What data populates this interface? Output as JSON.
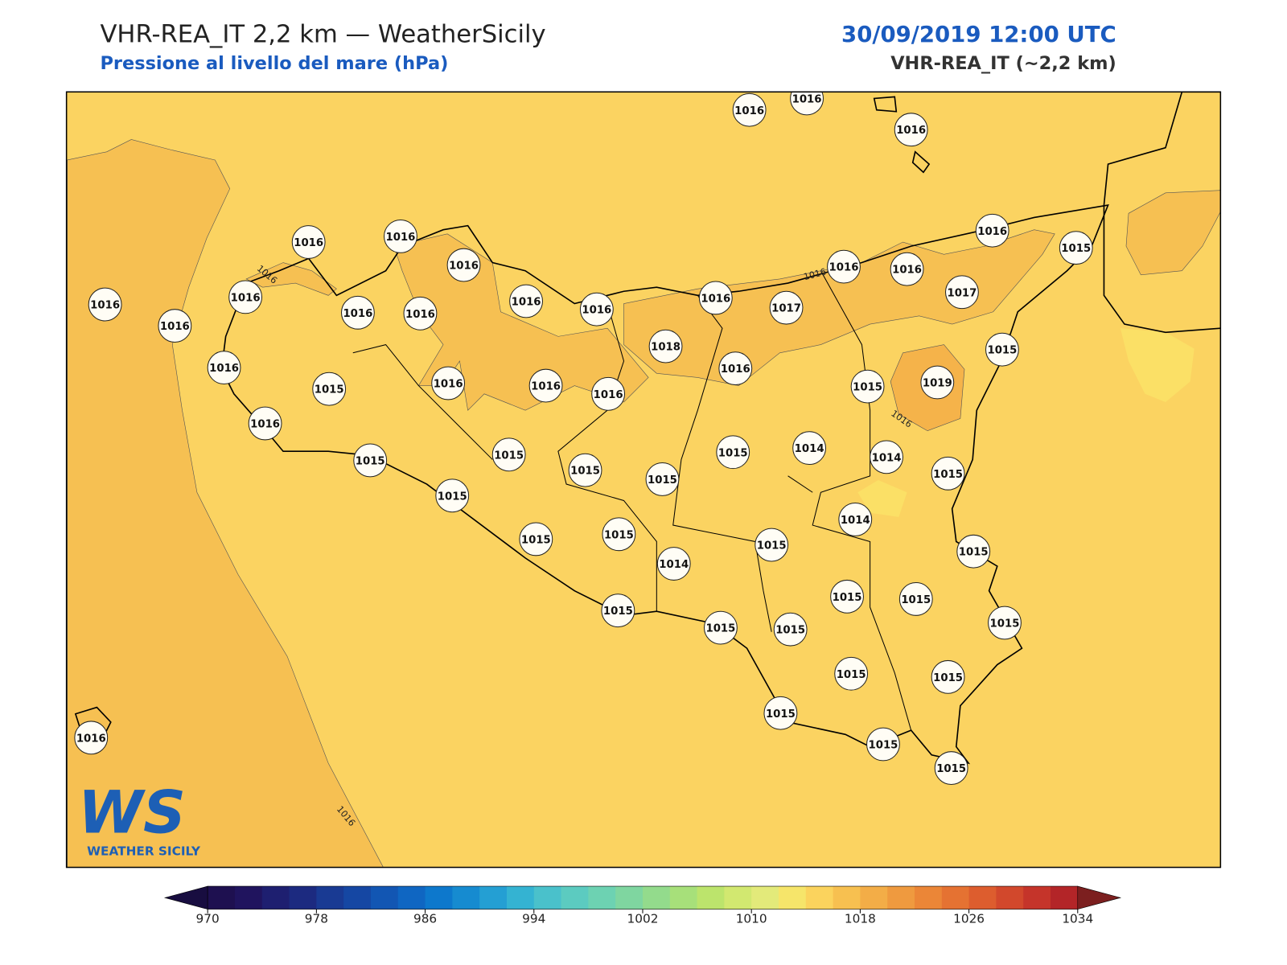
{
  "header": {
    "title": "VHR-REA_IT 2,2 km — WeatherSicily",
    "subtitle": "Pressione al livello del mare (hPa)",
    "date": "30/09/2019 12:00 UTC",
    "model": "VHR-REA_IT (~2,2 km)"
  },
  "map": {
    "stations": [
      1016,
      1016,
      1016,
      1016,
      1016,
      1016,
      1016,
      1016,
      1016,
      1016,
      1016,
      1016,
      1016,
      1016,
      1017,
      1016,
      1016,
      1017,
      1016,
      1015,
      1018,
      1016,
      1015,
      1015,
      1019,
      1016,
      1015,
      1016,
      1016,
      1016,
      1016,
      1015,
      1015,
      1015,
      1015,
      1015,
      1014,
      1014,
      1015,
      1015,
      1014,
      1015,
      1015,
      1015,
      1014,
      1015,
      1015,
      1015,
      1015,
      1015,
      1015,
      1015,
      1015,
      1015,
      1015,
      1015,
      1015,
      1016
    ],
    "contour_labels": [
      "1016",
      "1016",
      "1016",
      "1016"
    ],
    "land_color": "#fbd361",
    "high_color": "#f6c052",
    "low_color": "#fbe066"
  },
  "logo": {
    "mark": "WS",
    "name": "WEATHER SICILY"
  },
  "colorbar": {
    "range": [
      970,
      1034
    ],
    "ticks": [
      970,
      978,
      986,
      994,
      1002,
      1010,
      1018,
      1026,
      1034
    ],
    "under_color": "#180d40",
    "over_color": "#7c1f1f",
    "colors": [
      "#1e1050",
      "#20145e",
      "#1e1f70",
      "#1c2a80",
      "#193a93",
      "#1547a3",
      "#1256b3",
      "#0f66c2",
      "#0d78cc",
      "#168bd0",
      "#249fd3",
      "#34b3d2",
      "#4ac1cb",
      "#5ccbc0",
      "#6dd2b2",
      "#7fd6a0",
      "#93db8c",
      "#a7e07a",
      "#bce46c",
      "#d2e870",
      "#e3ea7a",
      "#f6e56a",
      "#fbd35d",
      "#f7c050",
      "#f3ad47",
      "#ef9a3f",
      "#eb8637",
      "#e57232",
      "#dd5d2e",
      "#d2482c",
      "#c5342a",
      "#b32528"
    ]
  }
}
